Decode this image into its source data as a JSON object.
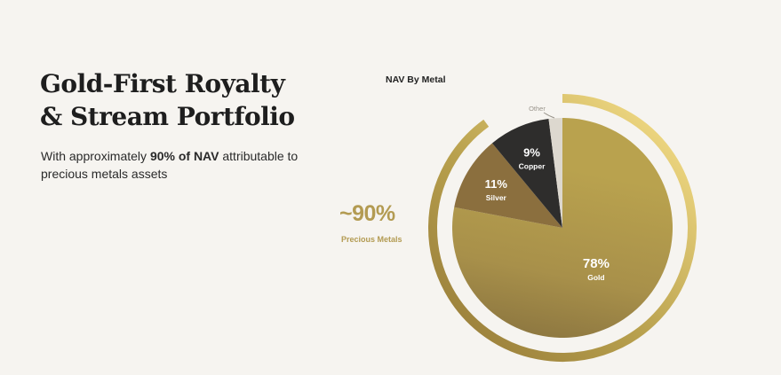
{
  "headline": {
    "line1": "Gold-First Royalty",
    "line2": "& Stream Portfolio"
  },
  "subtitle": {
    "before": "With approximately ",
    "bold": "90% of NAV",
    "after": " attributable to precious metals assets"
  },
  "callout": {
    "value": "~90%",
    "label": "Precious Metals"
  },
  "chart_data": {
    "type": "pie",
    "title": "NAV By Metal",
    "slices": [
      {
        "label": "Gold",
        "value": 78,
        "display": "78%",
        "color": "#b59e4c"
      },
      {
        "label": "Silver",
        "value": 11,
        "display": "11%",
        "color": "#8b6f3e"
      },
      {
        "label": "Copper",
        "value": 9,
        "display": "9%",
        "color": "#2e2d2c"
      },
      {
        "label": "Other",
        "value": 2,
        "display": "",
        "color": "#ddd8cf"
      }
    ],
    "ring": {
      "label": "Precious Metals",
      "share": 90,
      "colors": [
        "#f3dc86",
        "#b8a04d",
        "#957a38"
      ]
    }
  }
}
